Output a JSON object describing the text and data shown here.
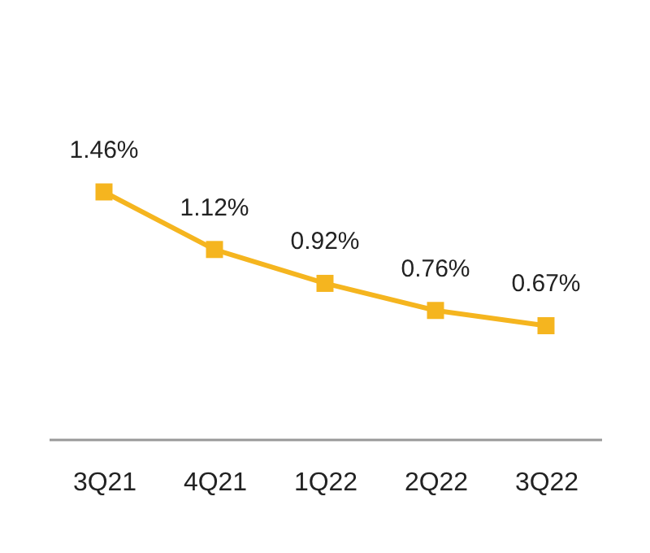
{
  "chart_data": {
    "type": "line",
    "categories": [
      "3Q21",
      "4Q21",
      "1Q22",
      "2Q22",
      "3Q22"
    ],
    "series": [
      {
        "color": "#f5b51f",
        "values": [
          1.46,
          1.12,
          0.92,
          0.76,
          0.67
        ],
        "value_labels": [
          "1.46%",
          "1.12%",
          "0.92%",
          "0.76%",
          "0.67%"
        ]
      }
    ],
    "marker": "square"
  }
}
